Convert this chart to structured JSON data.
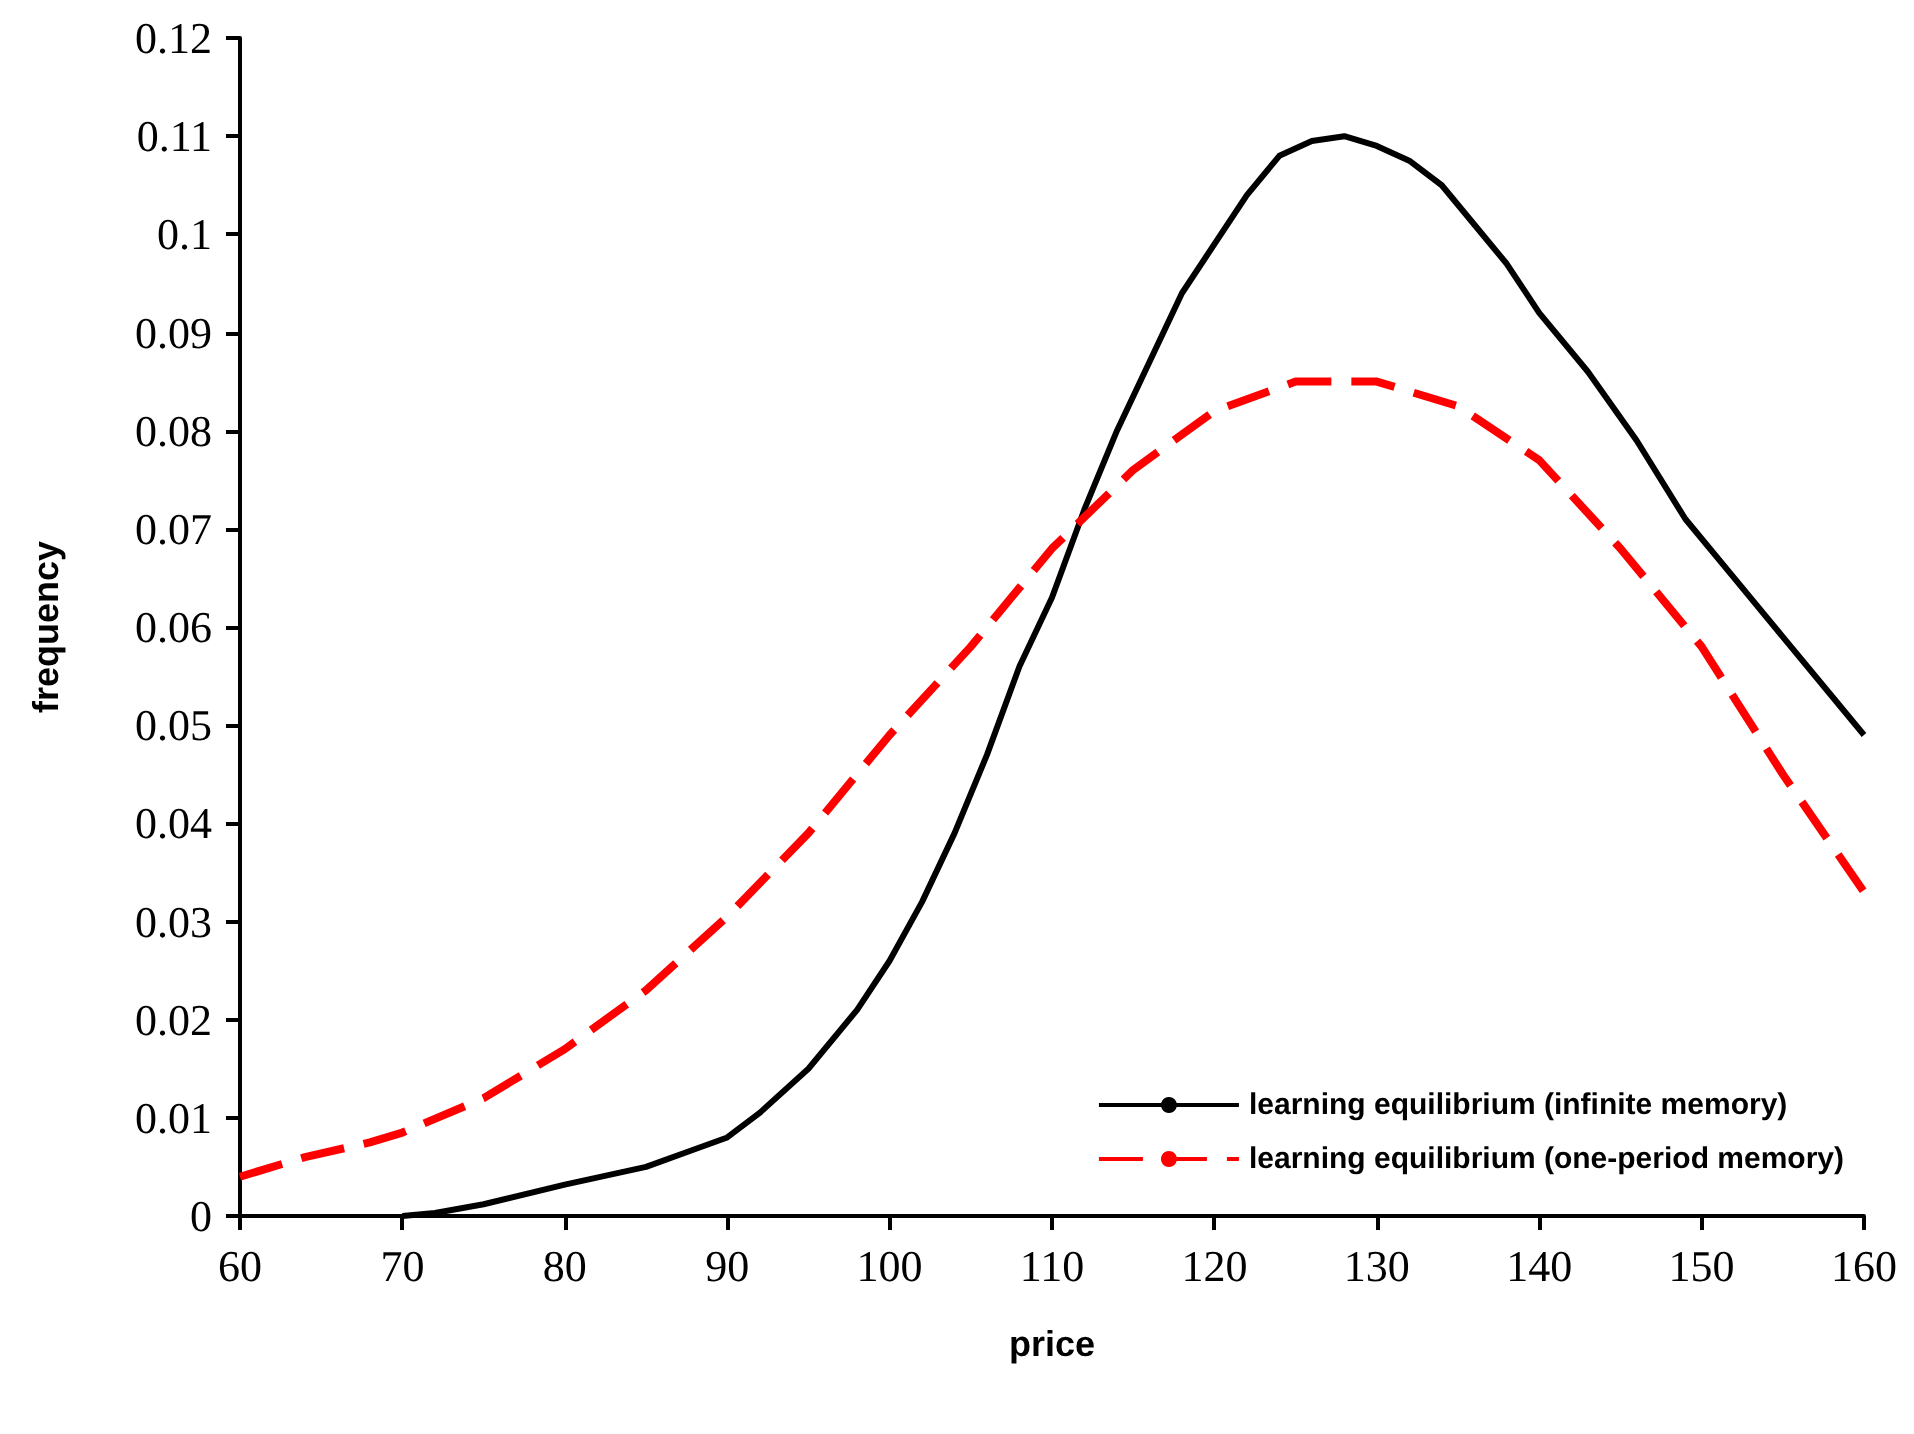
{
  "chart_data": {
    "type": "line",
    "xlabel": "price",
    "ylabel": "frequency",
    "xlim": [
      60,
      160
    ],
    "xticks": [
      60,
      70,
      80,
      90,
      100,
      110,
      120,
      130,
      140,
      150,
      160
    ],
    "ylim": [
      0,
      0.12
    ],
    "yticks": [
      0,
      0.01,
      0.02,
      0.03,
      0.04,
      0.05,
      0.06,
      0.07,
      0.08,
      0.09,
      0.1,
      0.11,
      0.12
    ],
    "grid": false,
    "legend": "bottom right",
    "marker": "none",
    "series": [
      {
        "name": "learning equilibrium (infinite memory)",
        "color": "#000000",
        "line_style": "solid",
        "x": [
          70,
          72,
          75,
          80,
          85,
          88,
          90,
          92,
          95,
          98,
          100,
          102,
          104,
          106,
          108,
          110,
          112,
          114,
          116,
          118,
          120,
          122,
          124,
          126,
          128,
          130,
          132,
          134,
          136,
          138,
          140,
          143,
          146,
          149,
          152,
          155,
          158,
          160
        ],
        "values": [
          0,
          0.0003,
          0.0012,
          0.0032,
          0.005,
          0.0068,
          0.008,
          0.0105,
          0.015,
          0.021,
          0.026,
          0.032,
          0.039,
          0.047,
          0.056,
          0.063,
          0.072,
          0.08,
          0.087,
          0.094,
          0.099,
          0.104,
          0.108,
          0.1095,
          0.11,
          0.109,
          0.1075,
          0.105,
          0.101,
          0.097,
          0.092,
          0.086,
          0.079,
          0.071,
          0.065,
          0.059,
          0.053,
          0.049
        ]
      },
      {
        "name": "learning equilibrium (one-period memory)",
        "color": "#ff0000",
        "line_style": "dashed",
        "x": [
          60,
          64,
          68,
          70,
          75,
          80,
          85,
          90,
          95,
          100,
          105,
          110,
          115,
          120,
          125,
          130,
          135,
          140,
          145,
          150,
          155,
          160
        ],
        "values": [
          0.004,
          0.006,
          0.0075,
          0.0085,
          0.012,
          0.017,
          0.023,
          0.0305,
          0.039,
          0.049,
          0.058,
          0.068,
          0.076,
          0.082,
          0.085,
          0.085,
          0.0825,
          0.077,
          0.068,
          0.058,
          0.045,
          0.033
        ]
      }
    ]
  }
}
